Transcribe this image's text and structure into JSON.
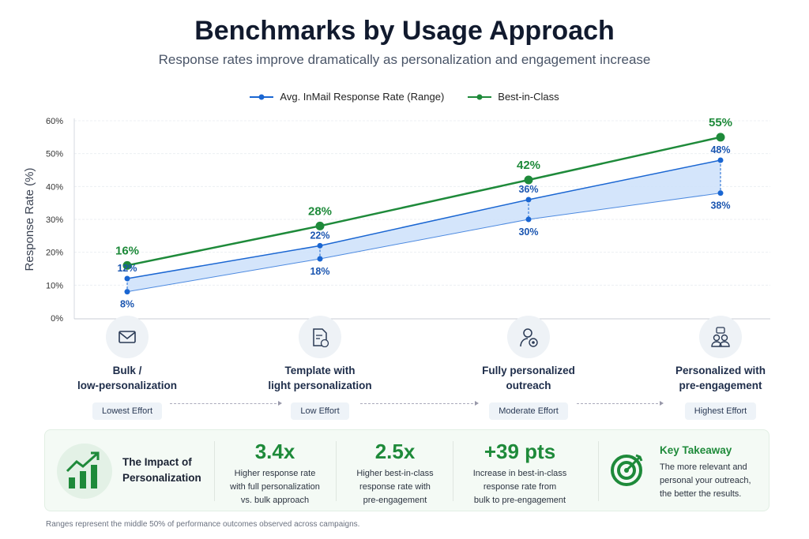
{
  "header": {
    "title": "Benchmarks by Usage Approach",
    "subtitle": "Response rates improve dramatically as personalization and engagement increase"
  },
  "chart_data": {
    "type": "line",
    "ylabel": "Response Rate (%)",
    "ylim": [
      0,
      60
    ],
    "yticks": [
      "0%",
      "10%",
      "20%",
      "30%",
      "40%",
      "50%",
      "60%"
    ],
    "grid": true,
    "legend_placement": "top",
    "categories": [
      "Bulk / low-personalization",
      "Template with light personalization",
      "Fully personalized outreach",
      "Personalized with pre-engagement"
    ],
    "series": [
      {
        "name": "Avg. InMail Response Rate (Range)",
        "type": "range",
        "low": [
          8,
          18,
          30,
          38
        ],
        "high": [
          12,
          22,
          36,
          48
        ],
        "low_labels": [
          "8%",
          "18%",
          "30%",
          "38%"
        ],
        "high_labels": [
          "12%",
          "22%",
          "36%",
          "48%"
        ],
        "color": "#1a66d2"
      },
      {
        "name": "Best-in-Class",
        "values": [
          16,
          28,
          42,
          55
        ],
        "labels": [
          "16%",
          "28%",
          "42%",
          "55%"
        ],
        "color": "#1e8a3a"
      }
    ]
  },
  "categories": [
    {
      "line1": "Bulk /",
      "line2": "low-personalization",
      "effort": "Lowest Effort",
      "icon": "envelope-icon"
    },
    {
      "line1": "Template with",
      "line2": "light personalization",
      "effort": "Low Effort",
      "icon": "document-user-icon"
    },
    {
      "line1": "Fully personalized",
      "line2": "outreach",
      "effort": "Moderate Effort",
      "icon": "user-star-icon"
    },
    {
      "line1": "Personalized with",
      "line2": "pre-engagement",
      "effort": "Highest Effort",
      "icon": "users-chat-icon"
    }
  ],
  "impact": {
    "title1": "The Impact of",
    "title2": "Personalization",
    "stats": [
      {
        "value": "3.4x",
        "l1": "Higher response rate",
        "l2": "with full personalization",
        "l3": "vs. bulk approach"
      },
      {
        "value": "2.5x",
        "l1": "Higher best-in-class",
        "l2": "response rate with",
        "l3": "pre-engagement"
      },
      {
        "value": "+39 pts",
        "l1": "Increase in best-in-class",
        "l2": "response rate from",
        "l3": "bulk to pre-engagement"
      }
    ],
    "takeaway": {
      "title": "Key Takeaway",
      "l1": "The more relevant and",
      "l2": "personal your outreach,",
      "l3": "the better the results."
    }
  },
  "footer": "Ranges represent the middle 50% of performance outcomes observed across campaigns."
}
